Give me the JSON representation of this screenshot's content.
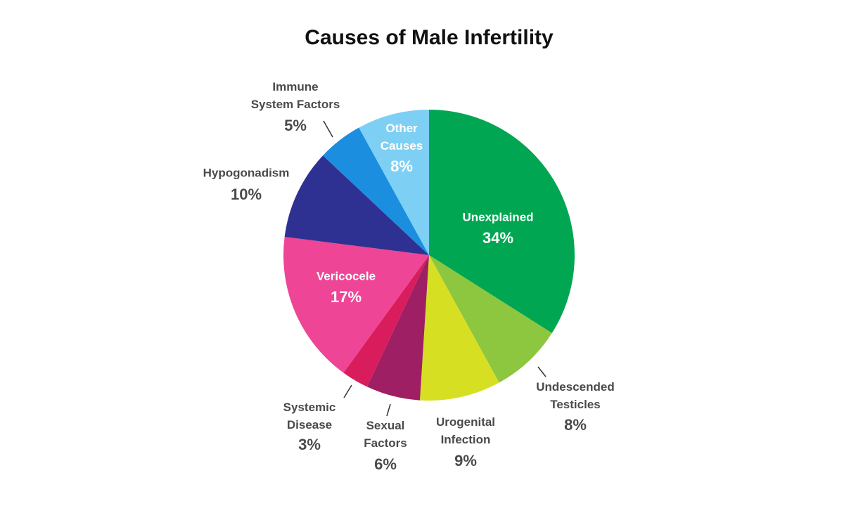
{
  "chart_data": {
    "type": "pie",
    "title": "Causes of Male Infertility",
    "categories": [
      "Unexplained",
      "Undescended\nTesticles",
      "Urogenital\nInfection",
      "Sexual\nFactors",
      "Systemic\nDisease",
      "Vericocele",
      "Hypogonadism",
      "Immune\nSystem Factors",
      "Other\nCauses"
    ],
    "values": [
      34,
      8,
      9,
      6,
      3,
      17,
      10,
      5,
      8
    ],
    "value_labels": [
      "34%",
      "8%",
      "9%",
      "6%",
      "3%",
      "17%",
      "10%",
      "5%",
      "8%"
    ],
    "colors": [
      "#00a651",
      "#8dc63f",
      "#d7df23",
      "#9e1f63",
      "#d91c5c",
      "#ee4596",
      "#2e3192",
      "#1b8ee0",
      "#7dd0f3"
    ]
  }
}
